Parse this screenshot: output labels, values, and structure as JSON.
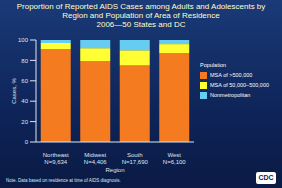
{
  "chart_data": {
    "type": "bar",
    "title": "Proportion of Reported AIDS Cases among Adults and Adolescents by Region and Population of Area of Residence",
    "subtitle": "2006—50 States and DC",
    "categories": [
      "Northeast N=9,634",
      "Midwest N=4,406",
      "South N=17,690",
      "West N=6,100"
    ],
    "series": [
      {
        "name": "MSA of >500,000",
        "color": "#f47b20",
        "values": [
          91,
          79,
          75,
          87
        ]
      },
      {
        "name": "MSA of 50,000–500,000",
        "color": "#ffff33",
        "values": [
          6,
          13,
          15,
          9
        ]
      },
      {
        "name": "Nonmetropolitan",
        "color": "#66ccf2",
        "values": [
          3,
          8,
          10,
          4
        ]
      }
    ],
    "stacked": true,
    "x_label": "Region",
    "y_label": "Cases, %",
    "ylim": [
      0,
      100
    ],
    "yticks": [
      0,
      20,
      40,
      60,
      80,
      100
    ],
    "grid": false,
    "legend": "right",
    "legend_title": "Population",
    "note": "Note. Data based on residence at time of AIDS diagnosis.",
    "logo": "CDC"
  }
}
